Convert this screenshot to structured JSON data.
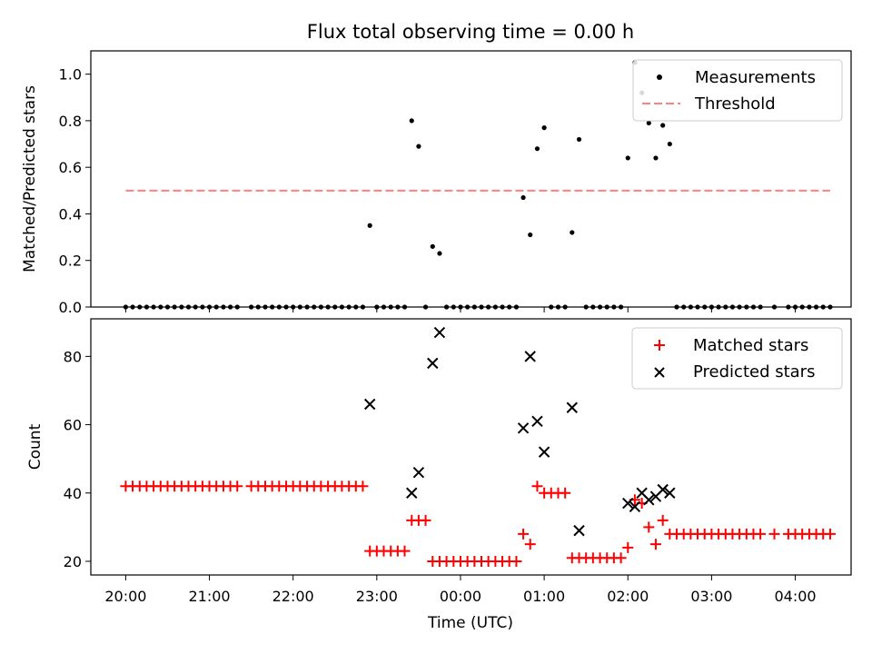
{
  "chart_data": [
    {
      "type": "scatter",
      "panel": "top",
      "title": "Flux total observing time = 0.00 h",
      "ylabel": "Matched/Predicted stars",
      "xlabel": "",
      "xlim_hours": [
        -0.4167,
        8.667
      ],
      "ylim": [
        0,
        1.1
      ],
      "yticks": [
        0.0,
        0.2,
        0.4,
        0.6,
        0.8,
        1.0
      ],
      "ytick_labels": [
        "0.0",
        "0.2",
        "0.4",
        "0.6",
        "0.8",
        "1.0"
      ],
      "legend_location": "top-right",
      "series": [
        {
          "name": "Measurements",
          "style": "dot",
          "color": "#000000",
          "x_hours": [
            0.0,
            0.083,
            0.167,
            0.25,
            0.333,
            0.417,
            0.5,
            0.583,
            0.667,
            0.75,
            0.833,
            0.917,
            1.0,
            1.083,
            1.167,
            1.25,
            1.333,
            1.5,
            1.583,
            1.667,
            1.75,
            1.833,
            1.917,
            2.0,
            2.083,
            2.167,
            2.25,
            2.333,
            2.417,
            2.5,
            2.583,
            2.667,
            2.75,
            2.833,
            2.917,
            3.0,
            3.083,
            3.167,
            3.25,
            3.333,
            3.417,
            3.5,
            3.583,
            3.667,
            3.75,
            3.833,
            3.917,
            4.0,
            4.083,
            4.167,
            4.25,
            4.333,
            4.417,
            4.5,
            4.583,
            4.667,
            4.75,
            4.833,
            4.917,
            5.0,
            5.083,
            5.167,
            5.25,
            5.333,
            5.417,
            5.5,
            5.583,
            5.667,
            5.75,
            5.833,
            5.917,
            6.0,
            6.083,
            6.167,
            6.25,
            6.333,
            6.417,
            6.5,
            6.583,
            6.667,
            6.75,
            6.833,
            6.917,
            7.0,
            7.083,
            7.167,
            7.25,
            7.333,
            7.417,
            7.5,
            7.583,
            7.75,
            7.917,
            8.0,
            8.083,
            8.167,
            8.25,
            8.333,
            8.417
          ],
          "y": [
            0,
            0,
            0,
            0,
            0,
            0,
            0,
            0,
            0,
            0,
            0,
            0,
            0,
            0,
            0,
            0,
            0,
            0,
            0,
            0,
            0,
            0,
            0,
            0,
            0,
            0,
            0,
            0,
            0,
            0,
            0,
            0,
            0,
            0,
            0.35,
            0,
            0,
            0,
            0,
            0,
            0.8,
            0.69,
            0,
            0.26,
            0.23,
            0,
            0,
            0,
            0,
            0,
            0,
            0,
            0,
            0,
            0,
            0,
            0.47,
            0.31,
            0.68,
            0.77,
            0,
            0,
            0,
            0.32,
            0.72,
            0,
            0,
            0,
            0,
            0,
            0,
            0.64,
            1.05,
            0.92,
            0.79,
            0.64,
            0.78,
            0.7,
            0,
            0,
            0,
            0,
            0,
            0,
            0,
            0,
            0,
            0,
            0,
            0,
            0,
            0,
            0,
            0,
            0,
            0,
            0,
            0,
            0
          ]
        },
        {
          "name": "Threshold",
          "style": "dashed-line",
          "color": "#ff8080",
          "x_hours": [
            0.0,
            8.417
          ],
          "y": [
            0.5,
            0.5
          ]
        }
      ]
    },
    {
      "type": "scatter",
      "panel": "bottom",
      "ylabel": "Count",
      "xlabel": "Time (UTC)",
      "xlim_hours": [
        -0.4167,
        8.667
      ],
      "ylim": [
        16,
        91
      ],
      "yticks": [
        20,
        40,
        60,
        80
      ],
      "ytick_labels": [
        "20",
        "40",
        "60",
        "80"
      ],
      "xticks_hours": [
        0,
        1,
        2,
        3,
        4,
        5,
        6,
        7,
        8
      ],
      "xtick_labels": [
        "20:00",
        "21:00",
        "22:00",
        "23:00",
        "00:00",
        "01:00",
        "02:00",
        "03:00",
        "04:00"
      ],
      "legend_location": "top-right",
      "series": [
        {
          "name": "Matched stars",
          "marker": "plus",
          "color": "#ff0000",
          "x_hours": [
            0.0,
            0.083,
            0.167,
            0.25,
            0.333,
            0.417,
            0.5,
            0.583,
            0.667,
            0.75,
            0.833,
            0.917,
            1.0,
            1.083,
            1.167,
            1.25,
            1.333,
            1.5,
            1.583,
            1.667,
            1.75,
            1.833,
            1.917,
            2.0,
            2.083,
            2.167,
            2.25,
            2.333,
            2.417,
            2.5,
            2.583,
            2.667,
            2.75,
            2.833,
            2.917,
            3.0,
            3.083,
            3.167,
            3.25,
            3.333,
            3.417,
            3.5,
            3.583,
            3.667,
            3.75,
            3.833,
            3.917,
            4.0,
            4.083,
            4.167,
            4.25,
            4.333,
            4.417,
            4.5,
            4.583,
            4.667,
            4.75,
            4.833,
            4.917,
            5.0,
            5.083,
            5.167,
            5.25,
            5.333,
            5.417,
            5.5,
            5.583,
            5.667,
            5.75,
            5.833,
            5.917,
            6.0,
            6.083,
            6.167,
            6.25,
            6.333,
            6.417,
            6.5,
            6.583,
            6.667,
            6.75,
            6.833,
            6.917,
            7.0,
            7.083,
            7.167,
            7.25,
            7.333,
            7.417,
            7.5,
            7.583,
            7.75,
            7.917,
            8.0,
            8.083,
            8.167,
            8.25,
            8.333,
            8.417
          ],
          "y": [
            42,
            42,
            42,
            42,
            42,
            42,
            42,
            42,
            42,
            42,
            42,
            42,
            42,
            42,
            42,
            42,
            42,
            42,
            42,
            42,
            42,
            42,
            42,
            42,
            42,
            42,
            42,
            42,
            42,
            42,
            42,
            42,
            42,
            42,
            23,
            23,
            23,
            23,
            23,
            23,
            32,
            32,
            32,
            20,
            20,
            20,
            20,
            20,
            20,
            20,
            20,
            20,
            20,
            20,
            20,
            20,
            28,
            25,
            42,
            40,
            40,
            40,
            40,
            21,
            21,
            21,
            21,
            21,
            21,
            21,
            21,
            24,
            38,
            37,
            30,
            25,
            32,
            28,
            28,
            28,
            28,
            28,
            28,
            28,
            28,
            28,
            28,
            28,
            28,
            28,
            28,
            28,
            28,
            28,
            28,
            28,
            28,
            28,
            28
          ]
        },
        {
          "name": "Predicted stars",
          "marker": "x",
          "color": "#000000",
          "x_hours": [
            2.917,
            3.417,
            3.5,
            3.667,
            3.75,
            4.75,
            4.833,
            4.917,
            5.0,
            5.333,
            5.417,
            6.0,
            6.083,
            6.167,
            6.25,
            6.333,
            6.417,
            6.5
          ],
          "y": [
            66,
            40,
            46,
            78,
            87,
            59,
            80,
            61,
            52,
            65,
            29,
            37,
            36,
            40,
            38,
            39,
            41,
            40
          ]
        }
      ]
    }
  ]
}
